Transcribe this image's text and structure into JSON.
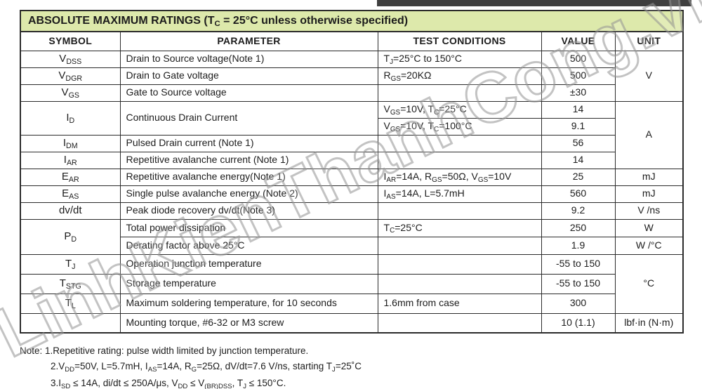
{
  "colors": {
    "title_bg": "#dde9ab",
    "border": "#2b2b2b",
    "top_bar": "#3f3f3f",
    "watermark_stroke": "#919191"
  },
  "watermark": {
    "text": "LinhKienThanhCong.vn"
  },
  "table": {
    "title": [
      [
        "t",
        "ABSOLUTE MAXIMUM RATINGS  (T"
      ],
      [
        "s",
        "C"
      ],
      [
        "t",
        " = 25°C unless otherwise specified)"
      ]
    ],
    "headers": {
      "symbol": "SYMBOL",
      "parameter": "PARAMETER",
      "conditions": "TEST CONDITIONS",
      "value": "VALUE",
      "unit": "UNIT"
    },
    "units": {
      "v": "V",
      "a": "A",
      "mj_ear": "mJ",
      "mj_eas": "mJ",
      "vns": "V /ns",
      "w": "W",
      "w_c": "W /°C",
      "c": "°C",
      "lbf": "lbf·in (N·m)"
    },
    "rows": {
      "vdss": {
        "sym": [
          [
            "t",
            "V"
          ],
          [
            "s",
            "DSS"
          ]
        ],
        "param": "Drain to Source voltage(Note 1)",
        "cond": [
          [
            "t",
            "T"
          ],
          [
            "s",
            "J"
          ],
          [
            "t",
            "=25°C to 150°C"
          ]
        ],
        "value": "500"
      },
      "vdgr": {
        "sym": [
          [
            "t",
            "V"
          ],
          [
            "s",
            "DGR"
          ]
        ],
        "param": "Drain to Gate voltage",
        "cond": [
          [
            "t",
            "R"
          ],
          [
            "s",
            "GS"
          ],
          [
            "t",
            "=20KΩ"
          ]
        ],
        "value": "500"
      },
      "vgs": {
        "sym": [
          [
            "t",
            "V"
          ],
          [
            "s",
            "GS"
          ]
        ],
        "param": "Gate to Source voltage",
        "value": "±30"
      },
      "id": {
        "sym": [
          [
            "t",
            "I"
          ],
          [
            "s",
            "D"
          ]
        ],
        "param": "Continuous Drain Current"
      },
      "id_tc25": {
        "cond": [
          [
            "t",
            "V"
          ],
          [
            "s",
            "GS"
          ],
          [
            "t",
            "=10V, T"
          ],
          [
            "s",
            "C"
          ],
          [
            "t",
            "=25°C"
          ]
        ],
        "value": "14"
      },
      "id_tc100": {
        "cond": [
          [
            "t",
            "V"
          ],
          [
            "s",
            "GS"
          ],
          [
            "t",
            "=10V, T"
          ],
          [
            "s",
            "C"
          ],
          [
            "t",
            "=100°C"
          ]
        ],
        "value": "9.1"
      },
      "idm": {
        "sym": [
          [
            "t",
            "I"
          ],
          [
            "s",
            "DM"
          ]
        ],
        "param": "Pulsed Drain current (Note 1)",
        "value": "56"
      },
      "iar": {
        "sym": [
          [
            "t",
            "I"
          ],
          [
            "s",
            "AR"
          ]
        ],
        "param": "Repetitive avalanche current (Note 1)",
        "value": "14"
      },
      "ear": {
        "sym": [
          [
            "t",
            "E"
          ],
          [
            "s",
            "AR"
          ]
        ],
        "param": "Repetitive avalanche energy(Note 1)",
        "cond": [
          [
            "t",
            "I"
          ],
          [
            "s",
            "AR"
          ],
          [
            "t",
            "=14A, R"
          ],
          [
            "s",
            "GS"
          ],
          [
            "t",
            "=50Ω, V"
          ],
          [
            "s",
            "GS"
          ],
          [
            "t",
            "=10V"
          ]
        ],
        "value": "25"
      },
      "eas": {
        "sym": [
          [
            "t",
            "E"
          ],
          [
            "s",
            "AS"
          ]
        ],
        "param": "Single pulse avalanche energy (Note 2)",
        "cond": [
          [
            "t",
            "I"
          ],
          [
            "s",
            "AS"
          ],
          [
            "t",
            "=14A, L=5.7mH"
          ]
        ],
        "value": "560"
      },
      "dvdt": {
        "sym_text": "dv/dt",
        "param": "Peak diode recovery dv/dt(Note 3)",
        "value": "9.2"
      },
      "pd": {
        "sym": [
          [
            "t",
            "P"
          ],
          [
            "s",
            "D"
          ]
        ],
        "param": "Total power dissipation",
        "cond": [
          [
            "t",
            "T"
          ],
          [
            "s",
            "C"
          ],
          [
            "t",
            "=25°C"
          ]
        ],
        "value": "250"
      },
      "derating": {
        "param": "Derating factor above 25°C",
        "value": "1.9"
      },
      "tj": {
        "sym": [
          [
            "t",
            "T"
          ],
          [
            "s",
            "J"
          ]
        ],
        "param": "Operation junction temperature",
        "value": "-55 to 150"
      },
      "tstg": {
        "sym": [
          [
            "t",
            "T"
          ],
          [
            "s",
            "STG"
          ]
        ],
        "param": "Storage temperature",
        "value": "-55 to 150"
      },
      "tl": {
        "sym": [
          [
            "t",
            "T"
          ],
          [
            "s",
            "L"
          ]
        ],
        "param": "Maximum soldering temperature, for 10 seconds",
        "cond_text": "1.6mm from case",
        "value": "300"
      },
      "mounting": {
        "param": "Mounting torque, #6-32 or M3 screw",
        "value": "10 (1.1)"
      }
    }
  },
  "notes": {
    "line1": [
      [
        "t",
        "Note: 1.Repetitive rating: pulse width limited by junction temperature."
      ]
    ],
    "line2": [
      [
        "t",
        "2.V"
      ],
      [
        "s",
        "DD"
      ],
      [
        "t",
        "=50V, L=5.7mH, I"
      ],
      [
        "s",
        "AS"
      ],
      [
        "t",
        "=14A, R"
      ],
      [
        "s",
        "G"
      ],
      [
        "t",
        "=25Ω, dV/dt=7.6 V/ns, starting T"
      ],
      [
        "s",
        "J"
      ],
      [
        "t",
        "=25˚C"
      ]
    ],
    "line3": [
      [
        "t",
        "3.I"
      ],
      [
        "s",
        "SD"
      ],
      [
        "t",
        " ≤ 14A, di/dt ≤ 250A/μs, V"
      ],
      [
        "s",
        "DD"
      ],
      [
        "t",
        " ≤ V"
      ],
      [
        "s",
        "(BR)DSS"
      ],
      [
        "t",
        ", T"
      ],
      [
        "s",
        "J"
      ],
      [
        "t",
        " ≤ 150°C."
      ]
    ]
  }
}
